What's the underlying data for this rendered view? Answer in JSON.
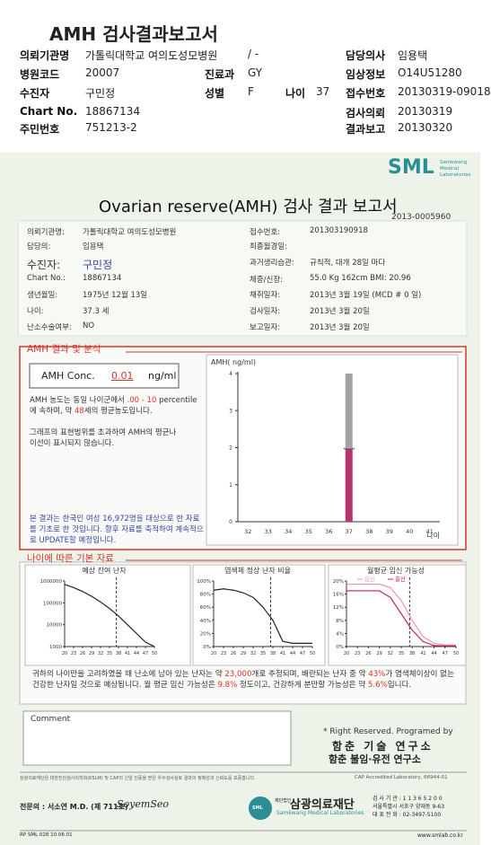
{
  "header": {
    "title": "AMH 검사결과보고서",
    "fields": [
      {
        "label": "의뢰기관명",
        "value": "가톨릭대학교 여의도성모병원",
        "value2": "/ -"
      },
      {
        "label": "담당의사",
        "value": "임용택"
      },
      {
        "label": "병원코드",
        "value": "20007"
      },
      {
        "label": "진료과",
        "value": "GY"
      },
      {
        "label": "임상정보",
        "value": "O14U51280"
      },
      {
        "label": "수진자",
        "value": "구민정"
      },
      {
        "label": "성별",
        "value": "F"
      },
      {
        "label": "나이",
        "value": "37"
      },
      {
        "label": "접수번호",
        "value": "20130319-09018"
      },
      {
        "label": "Chart No.",
        "value": "18867134"
      },
      {
        "label": "검사의뢰",
        "value": "20130319"
      },
      {
        "label": "주민번호",
        "value": "751213-2"
      },
      {
        "label": "결과보고",
        "value": "20130320"
      }
    ]
  },
  "report": {
    "logo": "SML",
    "logo_sub": [
      "Samkwang",
      "Medical",
      "Laboratories"
    ],
    "title": "Ovarian reserve(AMH) 검사 결과 보고서",
    "report_no": "2013-0005960",
    "info": [
      {
        "label": "의뢰기관명:",
        "value": "가톨릭대학교 여의도성모병원"
      },
      {
        "label": "담당의:",
        "value": "임용택"
      },
      {
        "label": "수진자:",
        "value": "구민정"
      },
      {
        "label": "Chart No.:",
        "value": "18867134"
      },
      {
        "label": "생년월일:",
        "value": "1975년 12월 13일"
      },
      {
        "label": "나이:",
        "value": "37.3 세"
      },
      {
        "label": "난소수술여부:",
        "value": "NO"
      },
      {
        "label": "접수번호:",
        "value": "201303190918"
      },
      {
        "label": "최종월경일:"
      },
      {
        "label": "과거생리습관:",
        "value": "규칙적, 대개  28일 마다"
      },
      {
        "label": "체중/신장:",
        "value": "55.0 Kg   162cm   BMI: 20.96"
      },
      {
        "label": "채취일자:",
        "value": "2013년 3월 19일   (MCD # 0 일)"
      },
      {
        "label": "검사일자:",
        "value": "2013년 3월 20일"
      },
      {
        "label": "보고일자:",
        "value": "2013년 3월 20일"
      }
    ]
  },
  "amh": {
    "section_title": "AMH 결과 및 분석",
    "conc_label": "AMH Conc.",
    "conc_value": "0.01",
    "unit": "ng/ml",
    "analysis": [
      "AMH 농도는 동일 나이군에서",
      ".00 - 10",
      "percentile에 속하며, 약",
      "48",
      "세의 평균농도입니다."
    ],
    "note": "그래프의 표현범위를 초과하여 AMH의 평균나이선이 표시되지 않습니다.",
    "disclaimer": "본 결과는 한국인 여성 16,972명을 대상으로 한 자료를 기초로 한 것입니다. 향후 자료를 축적하여 계속적으로 UPDATE할 예정입니다.",
    "chart": {
      "type": "bar",
      "y_label": "AMH( ng/ml)",
      "x_label": "나이",
      "categories": [
        "32",
        "33",
        "34",
        "35",
        "36",
        "37",
        "38",
        "39",
        "40",
        "41"
      ],
      "ylim": [
        0,
        4
      ],
      "yticks": [
        0,
        1,
        2,
        3,
        4
      ],
      "series": [
        {
          "color": "#b5366f",
          "values": [
            null,
            null,
            null,
            null,
            null,
            1.97,
            null,
            null,
            null,
            null
          ]
        },
        {
          "color": "#a3a3a3",
          "values": [
            null,
            null,
            null,
            null,
            null,
            2.03,
            null,
            null,
            null,
            null
          ]
        }
      ]
    }
  },
  "age": {
    "section_title": "나이에 따른 기본 자료",
    "charts": [
      {
        "type": "line",
        "title": "예상 잔여 난자",
        "log": true,
        "ylim": [
          1000,
          1000000
        ],
        "yticks": [
          1000000,
          100000,
          10000,
          1000
        ],
        "xlim": [
          20,
          50
        ],
        "xticks": [
          20,
          23,
          26,
          29,
          32,
          35,
          38,
          41,
          44,
          47,
          50
        ],
        "x": [
          20,
          23,
          26,
          29,
          32,
          35,
          38,
          41,
          44,
          47,
          50
        ],
        "series": [
          {
            "color": "#222222",
            "values": [
              700000,
              500000,
              330000,
              200000,
              110000,
              55000,
              25000,
              10000,
              4000,
              1600,
              1000
            ]
          }
        ]
      },
      {
        "type": "line",
        "title": "염색체 정상 난자 비율",
        "ylim": [
          0,
          100
        ],
        "yticks": [
          {
            "value": 100,
            "label": "100%"
          },
          {
            "value": 80,
            "label": "80%"
          },
          {
            "value": 60,
            "label": "60%"
          },
          {
            "value": 40,
            "label": "40%"
          },
          {
            "value": 20,
            "label": "20%"
          },
          {
            "value": 0,
            "label": "0%"
          }
        ],
        "xlim": [
          20,
          50
        ],
        "xticks": [
          20,
          23,
          26,
          29,
          32,
          35,
          38,
          41,
          44,
          47,
          50
        ],
        "x": [
          20,
          23,
          26,
          29,
          32,
          35,
          38,
          41,
          44,
          47,
          50
        ],
        "series": [
          {
            "color": "#222222",
            "values": [
              86,
              88,
              86,
              82,
              75,
              60,
              40,
              8,
              5,
              5,
              5
            ]
          }
        ]
      },
      {
        "type": "line",
        "title": "월평균 임신 가능성",
        "ylim": [
          0,
          20
        ],
        "yticks": [
          {
            "value": 20,
            "label": "20%"
          },
          {
            "value": 16,
            "label": "16%"
          },
          {
            "value": 12,
            "label": "12%"
          },
          {
            "value": 8,
            "label": "8%"
          },
          {
            "value": 4,
            "label": "4%"
          },
          {
            "value": 0,
            "label": "0%"
          }
        ],
        "xlim": [
          20,
          50
        ],
        "xticks": [
          20,
          23,
          26,
          29,
          32,
          35,
          38,
          41,
          44,
          47,
          50
        ],
        "x": [
          20,
          23,
          26,
          29,
          32,
          35,
          38,
          41,
          44,
          47,
          50
        ],
        "series": [
          {
            "name": "임신",
            "color": "#e79aa8",
            "values": [
              19,
              19,
              19,
              19,
              18,
              14,
              8,
              3,
              1,
              0.5,
              0.5
            ]
          },
          {
            "name": "출산",
            "color": "#cc2255",
            "values": [
              17,
              17,
              17,
              17,
              15,
              10,
              5,
              1.5,
              0.3,
              0.2,
              0.2
            ]
          }
        ]
      }
    ],
    "summary": [
      "귀하의 나이만을 고려하였을 때 난소에 남아 있는 난자는 약",
      "23,000",
      "개로 추정되며, 배란되는 난자 중 약",
      "43%",
      "가 염색체이상이 없는 건강한 난자일 것으로 예상됩니다. 월 평균 임신 가능성은",
      "9.8%",
      "정도이고, 건강하게 분만할 가능성은 약",
      "5.6%",
      "입니다."
    ]
  },
  "comment": {
    "label": "Comment"
  },
  "credits": {
    "line": "* Right Reserved. Programed by",
    "lab1": "함춘 기술 연구소",
    "lab2": "함춘 불임·유전 연구소"
  },
  "footer": {
    "notice": "삼광의료재단은 대한진단검사의학회(KSLM) 및 CAP의 신임 인증을 받은 우수검사실로 결과의 정확성과 신뢰도를 보증합니다.",
    "cap": "CAP  Accredited  Laboratory,  66944-01",
    "doctor": "전문의 : 서소연 M.D. (제 711호)",
    "signature": "SoyemSeo",
    "foundation_tag": "재단법인",
    "foundation": "삼광의료재단",
    "foundation_en": "Samkwang Medical Laboratories",
    "logo": "SML",
    "code": "검 사 기 관 : 1 1 3 6 5 2 0 0",
    "address": "서울특별시 서초구 양재동 9-63",
    "phone": "대 표 전 화 : 02-3497-5100",
    "form": "RP  SML  028  10.06.01",
    "web": "www.smlab.co.kr"
  }
}
